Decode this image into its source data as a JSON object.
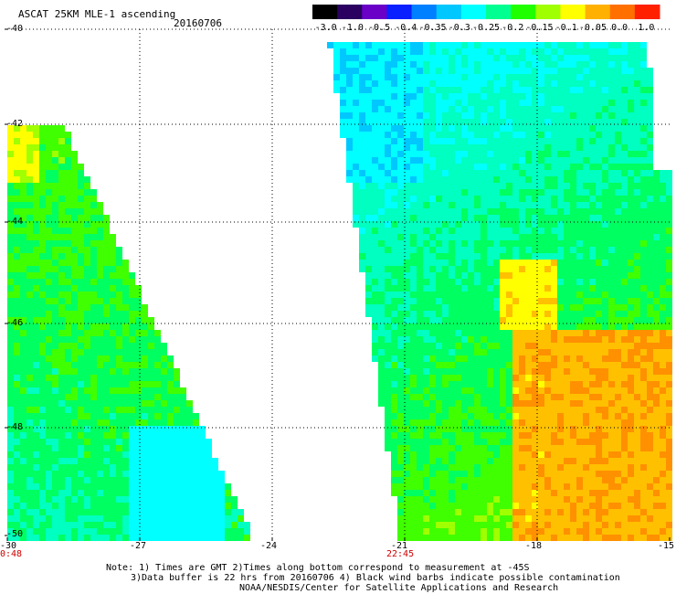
{
  "header": {
    "title": "ASCAT 25KM MLE-1 ascending",
    "date": "20160706"
  },
  "colorbar": {
    "labels": [
      "-3.0",
      "-1.0",
      "-0.5",
      "-0.4",
      "-0.35",
      "-0.3",
      "-0.25",
      "-0.2",
      "-0.15",
      "-0.1",
      "-0.05",
      "0.0",
      "1.0"
    ],
    "colors": [
      "#000000",
      "#2a0060",
      "#6a00c8",
      "#0a20ff",
      "#0080ff",
      "#00c8ff",
      "#00ffff",
      "#00ff90",
      "#20ff00",
      "#a0ff00",
      "#ffff00",
      "#ffb000",
      "#ff7000",
      "#ff2000"
    ]
  },
  "map": {
    "lat_ticks": [
      "-40",
      "-42",
      "-44",
      "-46",
      "-48",
      "-50"
    ],
    "lon_ticks": [
      "-30",
      "-27",
      "-24",
      "-21",
      "-18",
      "-15"
    ],
    "lat_range": [
      -50,
      -40
    ],
    "lon_range": [
      -30,
      -15
    ],
    "grid": true,
    "swath_times": [
      "0:48",
      "22:45"
    ]
  },
  "footer": {
    "note1": "Note: 1) Times are GMT 2)Times along bottom correspond to measurement at -45S",
    "note2": "3)Data buffer is 22 hrs from 20160706 4) Black wind barbs indicate possible contamination",
    "credit": "NOAA/NESDIS/Center for Satellite Applications and Research"
  }
}
